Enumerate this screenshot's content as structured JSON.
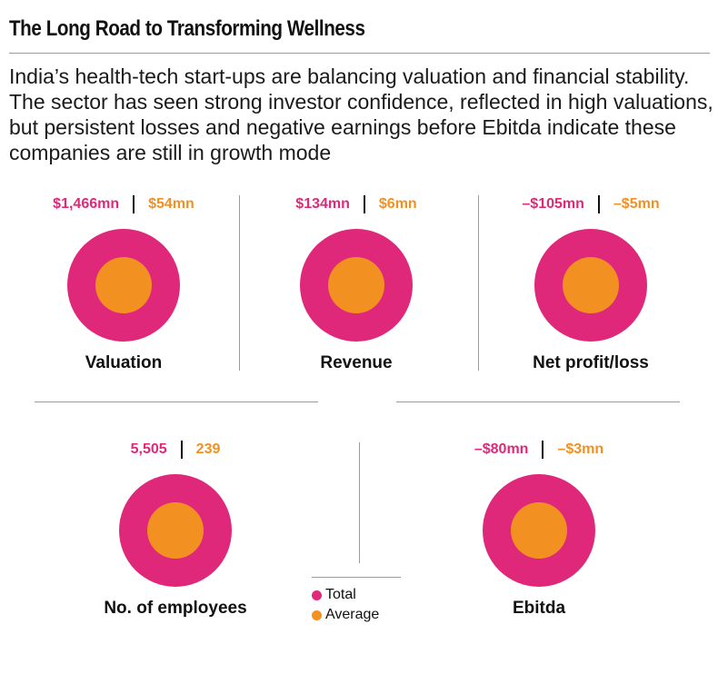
{
  "title": "The Long Road to Transforming Wellness",
  "subtitle": "India’s health-tech start-ups are balancing valuation and financial stability. The sector has seen strong investor confidence, reflected in high valuations, but persistent losses and negative earnings before Ebitda indicate these companies are still in growth mode",
  "colors": {
    "total": "#e0287a",
    "average": "#f29022"
  },
  "legend": {
    "total": "Total",
    "average": "Average"
  },
  "chart_data": {
    "type": "nested-circle",
    "series": [
      {
        "name": "Total"
      },
      {
        "name": "Average"
      }
    ],
    "panels": [
      {
        "label": "Valuation",
        "total": 1466,
        "average": 54,
        "unit": "$mn",
        "total_text": "$1,466mn",
        "average_text": "$54mn"
      },
      {
        "label": "Revenue",
        "total": 134,
        "average": 6,
        "unit": "$mn",
        "total_text": "$134mn",
        "average_text": "$6mn"
      },
      {
        "label": "Net profit/loss",
        "total": -105,
        "average": -5,
        "unit": "$mn",
        "total_text": "–$105mn",
        "average_text": "–$5mn"
      },
      {
        "label": "No. of employees",
        "total": 5505,
        "average": 239,
        "unit": "",
        "total_text": "5,505",
        "average_text": "239"
      },
      {
        "label": "Ebitda",
        "total": -80,
        "average": -3,
        "unit": "$mn",
        "total_text": "–$80mn",
        "average_text": "–$3mn"
      }
    ]
  }
}
